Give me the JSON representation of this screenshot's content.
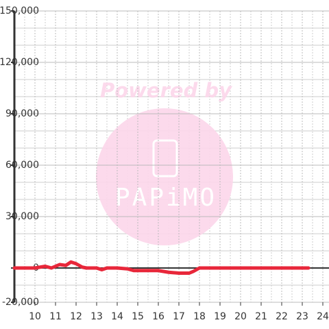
{
  "chart_data": {
    "type": "line",
    "x": [
      9,
      10,
      10.5,
      10.8,
      11,
      11.2,
      11.5,
      11.75,
      12,
      12.3,
      12.5,
      13,
      13.25,
      13.5,
      14,
      14.5,
      14.8,
      16,
      16.5,
      17,
      17.5,
      17.7,
      18,
      23.3
    ],
    "series": [
      {
        "color": "#e8273a",
        "values": [
          0,
          0,
          1000,
          0,
          1000,
          2000,
          1500,
          3500,
          2500,
          500,
          0,
          0,
          -1000,
          0,
          0,
          -500,
          -1500,
          -1500,
          -2500,
          -3000,
          -3000,
          -2000,
          0,
          0
        ]
      }
    ],
    "xlim": [
      9,
      24.3
    ],
    "xticks": [
      10,
      11,
      12,
      13,
      14,
      15,
      16,
      17,
      18,
      19,
      20,
      21,
      22,
      23,
      24
    ],
    "ylim": [
      -20000,
      150000
    ],
    "yticks": [
      {
        "value": -20000,
        "label": "-20,000"
      },
      0,
      {
        "value": 30000,
        "label": "30,000"
      },
      {
        "value": 60000,
        "label": "60,000"
      },
      {
        "value": 90000,
        "label": "90,000"
      },
      {
        "value": 120000,
        "label": "120,000"
      },
      {
        "value": 150000,
        "label": "150,000"
      }
    ],
    "grid": true,
    "annotations": [
      "Powered by",
      "PAPiMO"
    ]
  }
}
